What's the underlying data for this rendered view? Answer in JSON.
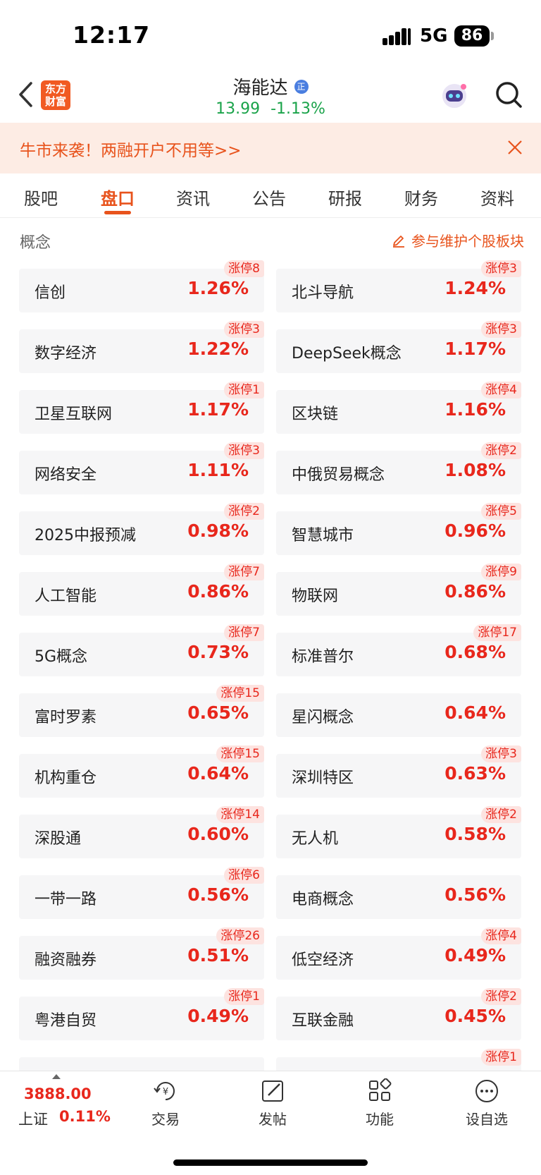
{
  "status_bar": {
    "time": "12:17",
    "network": "5G",
    "battery": "86"
  },
  "header": {
    "logo_text_line1": "东方",
    "logo_text_line2": "财富",
    "stock_name": "海能达",
    "stock_badge": "正",
    "price": "13.99",
    "change": "-1.13%"
  },
  "banner": {
    "text": "牛市来袭！两融开户不用等>>"
  },
  "tabs": [
    "股吧",
    "盘口",
    "资讯",
    "公告",
    "研报",
    "财务",
    "资料"
  ],
  "active_tab": "盘口",
  "section": {
    "title": "概念",
    "maintain_link": "参与维护个股板块"
  },
  "concepts": [
    {
      "name": "信创",
      "pct": "1.26%",
      "badge": "涨停8"
    },
    {
      "name": "北斗导航",
      "pct": "1.24%",
      "badge": "涨停3"
    },
    {
      "name": "数字经济",
      "pct": "1.22%",
      "badge": "涨停3"
    },
    {
      "name": "DeepSeek概念",
      "pct": "1.17%",
      "badge": "涨停3"
    },
    {
      "name": "卫星互联网",
      "pct": "1.17%",
      "badge": "涨停1"
    },
    {
      "name": "区块链",
      "pct": "1.16%",
      "badge": "涨停4"
    },
    {
      "name": "网络安全",
      "pct": "1.11%",
      "badge": "涨停3"
    },
    {
      "name": "中俄贸易概念",
      "pct": "1.08%",
      "badge": "涨停2"
    },
    {
      "name": "2025中报预减",
      "pct": "0.98%",
      "badge": "涨停2"
    },
    {
      "name": "智慧城市",
      "pct": "0.96%",
      "badge": "涨停5"
    },
    {
      "name": "人工智能",
      "pct": "0.86%",
      "badge": "涨停7"
    },
    {
      "name": "物联网",
      "pct": "0.86%",
      "badge": "涨停9"
    },
    {
      "name": "5G概念",
      "pct": "0.73%",
      "badge": "涨停7"
    },
    {
      "name": "标准普尔",
      "pct": "0.68%",
      "badge": "涨停17"
    },
    {
      "name": "富时罗素",
      "pct": "0.65%",
      "badge": "涨停15"
    },
    {
      "name": "星闪概念",
      "pct": "0.64%",
      "badge": ""
    },
    {
      "name": "机构重仓",
      "pct": "0.64%",
      "badge": "涨停15"
    },
    {
      "name": "深圳特区",
      "pct": "0.63%",
      "badge": "涨停3"
    },
    {
      "name": "深股通",
      "pct": "0.60%",
      "badge": "涨停14"
    },
    {
      "name": "无人机",
      "pct": "0.58%",
      "badge": "涨停2"
    },
    {
      "name": "一带一路",
      "pct": "0.56%",
      "badge": "涨停6"
    },
    {
      "name": "电商概念",
      "pct": "0.56%",
      "badge": ""
    },
    {
      "name": "融资融券",
      "pct": "0.51%",
      "badge": "涨停26"
    },
    {
      "name": "低空经济",
      "pct": "0.49%",
      "badge": "涨停4"
    },
    {
      "name": "粤港自贸",
      "pct": "0.49%",
      "badge": "涨停1"
    },
    {
      "name": "互联金融",
      "pct": "0.45%",
      "badge": "涨停2"
    },
    {
      "name": "",
      "pct": "",
      "badge": ""
    },
    {
      "name": "",
      "pct": "",
      "badge": "涨停1"
    }
  ],
  "bottom": {
    "index_value": "3888.00",
    "index_name": "上证",
    "index_pct": "0.11%",
    "nav": [
      {
        "label": "交易",
        "icon": "trade-icon"
      },
      {
        "label": "发帖",
        "icon": "post-icon"
      },
      {
        "label": "功能",
        "icon": "grid-icon"
      },
      {
        "label": "设自选",
        "icon": "more-icon"
      }
    ]
  },
  "colors": {
    "accent": "#e8531c",
    "up": "#e8271c",
    "down": "#1aa34a"
  }
}
